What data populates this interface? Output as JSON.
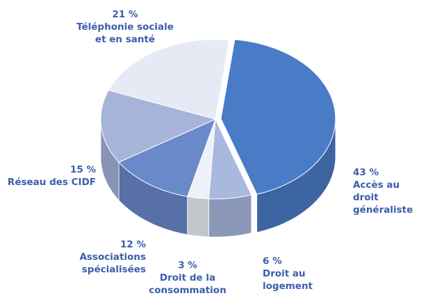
{
  "chart_data": {
    "type": "pie",
    "categories": [
      "Accès au droit\ngénéraliste",
      "Droit au\nlogement",
      "Droit de la\nconsommation",
      "Associations\nspécialisées",
      "Réseau des CIDF",
      "Téléphonie sociale\net en santé"
    ],
    "values": [
      43,
      6,
      3,
      12,
      15,
      21
    ],
    "value_labels": [
      "43 %",
      "6 %",
      "3 %",
      "12 %",
      "15 %",
      "21 %"
    ],
    "colors": [
      "#4a7bc6",
      "#a9b8de",
      "#eef1f8",
      "#6a89c9",
      "#a6b4da",
      "#e6eaf4"
    ]
  }
}
